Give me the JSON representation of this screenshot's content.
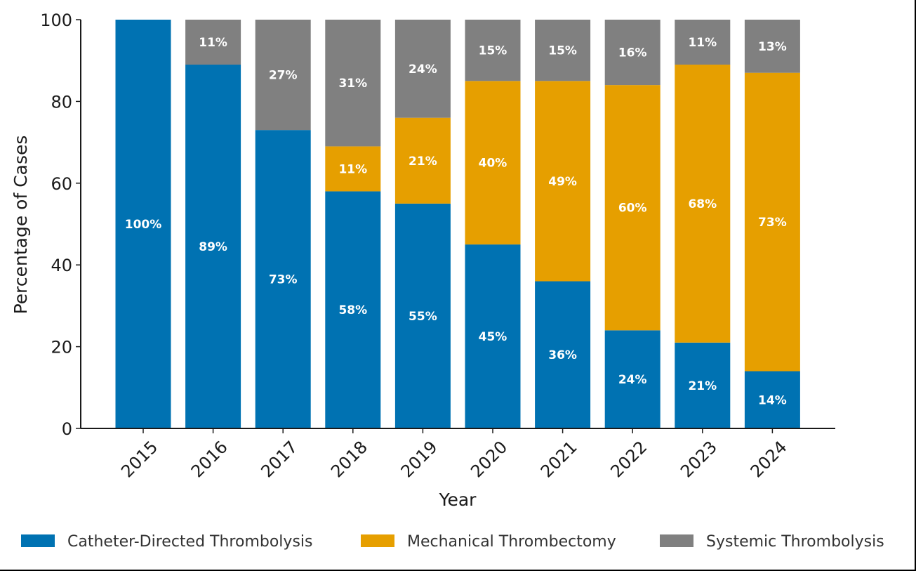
{
  "chart_data": {
    "type": "bar",
    "stacked": true,
    "title": "",
    "xlabel": "Year",
    "ylabel": "Percentage of Cases",
    "ylim": [
      0,
      100
    ],
    "yticks": [
      0,
      20,
      40,
      60,
      80,
      100
    ],
    "categories": [
      "2015",
      "2016",
      "2017",
      "2018",
      "2019",
      "2020",
      "2021",
      "2022",
      "2023",
      "2024"
    ],
    "series": [
      {
        "name": "Catheter-Directed Thrombolysis",
        "color": "#0072B2",
        "values": [
          100,
          89,
          73,
          58,
          55,
          45,
          36,
          24,
          21,
          14
        ]
      },
      {
        "name": "Mechanical Thrombectomy",
        "color": "#E69F00",
        "values": [
          0,
          0,
          0,
          11,
          21,
          40,
          49,
          60,
          68,
          73
        ]
      },
      {
        "name": "Systemic Thrombolysis",
        "color": "#808080",
        "values": [
          0,
          11,
          27,
          31,
          24,
          15,
          15,
          16,
          11,
          13
        ]
      }
    ],
    "legend_position": "bottom",
    "grid": false
  }
}
